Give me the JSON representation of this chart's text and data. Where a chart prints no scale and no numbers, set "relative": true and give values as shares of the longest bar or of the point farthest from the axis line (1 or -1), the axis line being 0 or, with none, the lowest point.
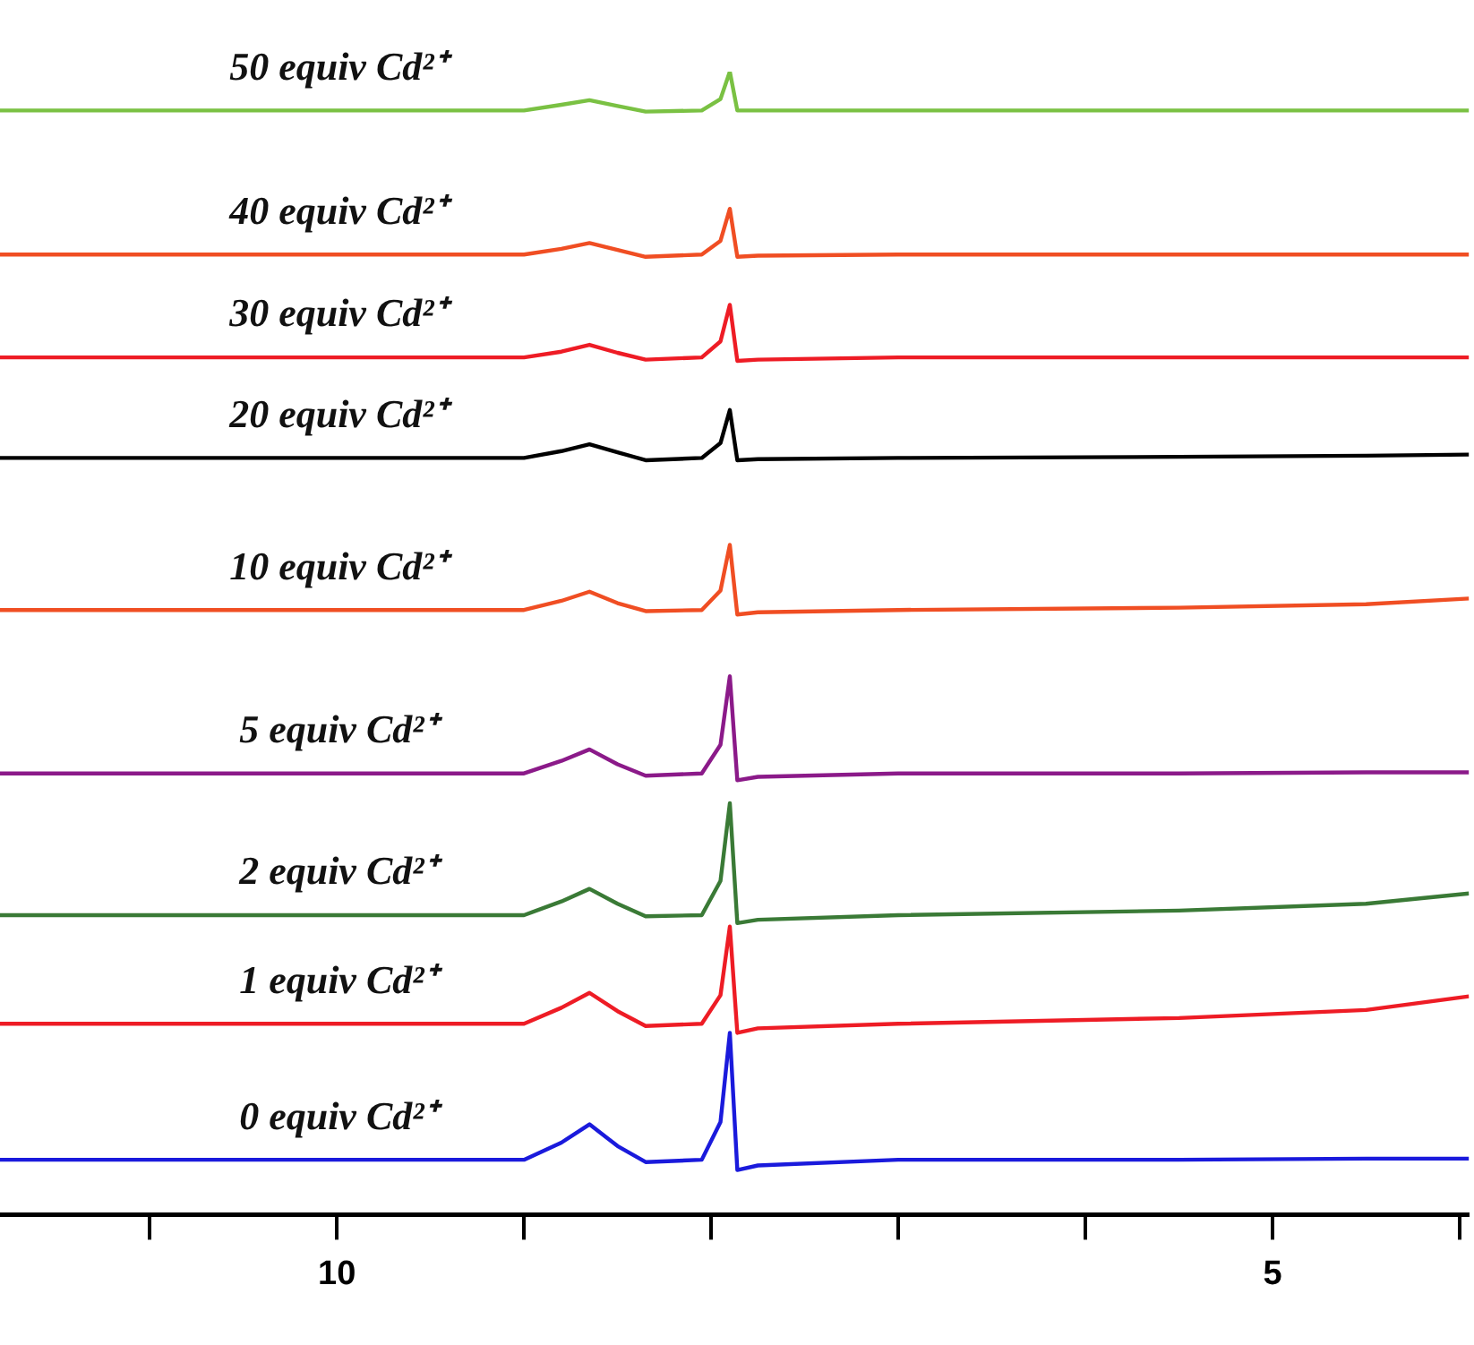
{
  "chart_data": {
    "type": "line",
    "relative": true,
    "x": [
      11.8,
      9.0,
      8.8,
      8.65,
      8.5,
      8.35,
      8.05,
      7.95,
      7.9,
      7.86,
      7.75,
      7.0,
      5.5,
      4.5,
      3.95
    ],
    "xlim": [
      11.8,
      3.95
    ],
    "xticks": [
      {
        "value": 11,
        "label": null
      },
      10,
      {
        "value": 9,
        "label": null
      },
      {
        "value": 8,
        "label": null
      },
      {
        "value": 7,
        "label": null
      },
      {
        "value": 6,
        "label": null
      },
      5,
      {
        "value": 4,
        "label": null
      }
    ],
    "series": [
      {
        "name": "0 equiv Cd²⁺",
        "color": "#1a1adc",
        "values": [
          0.048,
          0.048,
          0.063,
          0.079,
          0.06,
          0.046,
          0.048,
          0.081,
          0.159,
          0.039,
          0.043,
          0.048,
          0.048,
          0.049,
          0.049
        ]
      },
      {
        "name": "1 equiv Cd²⁺",
        "color": "#ee1c25",
        "values": [
          0.167,
          0.167,
          0.181,
          0.194,
          0.178,
          0.165,
          0.167,
          0.192,
          0.252,
          0.159,
          0.163,
          0.167,
          0.172,
          0.179,
          0.191
        ]
      },
      {
        "name": "2 equiv Cd²⁺",
        "color": "#3a7a36",
        "values": [
          0.262,
          0.262,
          0.274,
          0.285,
          0.272,
          0.261,
          0.262,
          0.292,
          0.36,
          0.255,
          0.258,
          0.262,
          0.266,
          0.272,
          0.281
        ]
      },
      {
        "name": "5 equiv Cd²⁺",
        "color": "#8b1a89",
        "values": [
          0.386,
          0.386,
          0.397,
          0.407,
          0.394,
          0.384,
          0.386,
          0.411,
          0.471,
          0.38,
          0.383,
          0.386,
          0.386,
          0.387,
          0.387
        ]
      },
      {
        "name": "10 equiv Cd²⁺",
        "color": "#f04e23",
        "values": [
          0.529,
          0.529,
          0.537,
          0.545,
          0.535,
          0.528,
          0.529,
          0.546,
          0.586,
          0.525,
          0.527,
          0.529,
          0.531,
          0.534,
          0.539
        ]
      },
      {
        "name": "20 equiv Cd²⁺",
        "color": "#000000",
        "values": [
          0.662,
          0.662,
          0.668,
          0.674,
          0.667,
          0.66,
          0.662,
          0.675,
          0.704,
          0.66,
          0.661,
          0.662,
          0.663,
          0.664,
          0.665
        ]
      },
      {
        "name": "30 equiv Cd²⁺",
        "color": "#ee1c25",
        "values": [
          0.75,
          0.75,
          0.755,
          0.761,
          0.754,
          0.748,
          0.75,
          0.764,
          0.796,
          0.747,
          0.748,
          0.75,
          0.75,
          0.75,
          0.75
        ]
      },
      {
        "name": "40 equiv Cd²⁺",
        "color": "#f04e23",
        "values": [
          0.84,
          0.84,
          0.845,
          0.85,
          0.844,
          0.838,
          0.84,
          0.852,
          0.88,
          0.838,
          0.839,
          0.84,
          0.84,
          0.84,
          0.84
        ]
      },
      {
        "name": "50 equiv Cd²⁺",
        "color": "#7ac143",
        "values": [
          0.966,
          0.966,
          0.971,
          0.975,
          0.97,
          0.965,
          0.966,
          0.976,
          1.0,
          0.966,
          0.966,
          0.966,
          0.966,
          0.966,
          0.966
        ]
      }
    ]
  }
}
